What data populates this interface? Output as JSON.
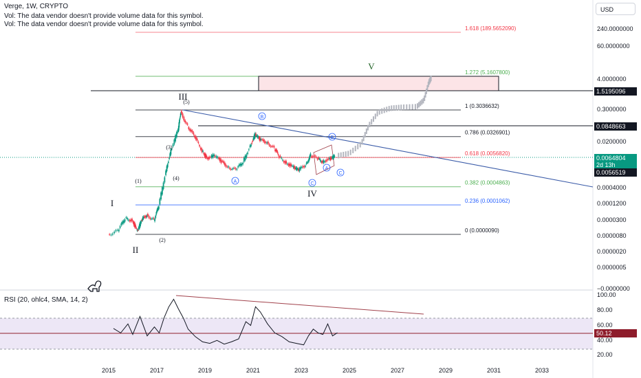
{
  "header": {
    "title": "Verge, 1W, CRYPTO",
    "vol_notice_1": "Vol: The data vendor doesn't provide volume data for this symbol.",
    "vol_notice_2": "Vol: The data vendor doesn't provide volume data for this symbol."
  },
  "currency": "USD",
  "rsi_title": "RSI (20, ohlc4, SMA, 14, 2)",
  "colors": {
    "up": "#089981",
    "down": "#f23645",
    "projection": "#b2b5be",
    "trendline": "#3a5ba8",
    "rsi_line": "#131722",
    "rsi_div": "#a0404a",
    "rsi_band": "#ede7f6",
    "current_price": "#089981"
  },
  "chart_data": [
    {
      "type": "line",
      "title": "Verge, 1W, CRYPTO",
      "scale": "log",
      "x": [
        2015.0,
        2015.4,
        2015.7,
        2016.0,
        2016.2,
        2016.4,
        2016.6,
        2016.9,
        2017.1,
        2017.4,
        2017.6,
        2017.9,
        2018.0,
        2018.3,
        2018.6,
        2018.9,
        2019.1,
        2019.4,
        2019.7,
        2020.0,
        2020.3,
        2020.6,
        2020.9,
        2021.1,
        2021.3,
        2021.6,
        2021.9,
        2022.1,
        2022.4,
        2022.7,
        2022.9,
        2023.2,
        2023.4,
        2023.7,
        2023.9,
        2024.2,
        2024.4
      ],
      "values": [
        8.9e-06,
        1.2e-05,
        3.5e-05,
        2.8e-05,
        1.2e-05,
        3.2e-05,
        4.5e-05,
        3e-05,
        0.0001,
        0.002,
        0.01,
        0.06,
        0.25,
        0.08,
        0.03,
        0.01,
        0.005,
        0.007,
        0.004,
        0.0025,
        0.002,
        0.004,
        0.015,
        0.04,
        0.025,
        0.02,
        0.012,
        0.006,
        0.0035,
        0.0025,
        0.002,
        0.003,
        0.007,
        0.005,
        0.004,
        0.005,
        0.0064804
      ],
      "projection": {
        "x": [
          2024.5,
          2025.0,
          2025.5,
          2025.8,
          2026.2,
          2026.7,
          2027.2,
          2027.8,
          2028.1,
          2028.3,
          2028.4
        ],
        "values": [
          0.0065,
          0.008,
          0.018,
          0.08,
          0.25,
          0.35,
          0.38,
          0.4,
          0.7,
          3.0,
          4.5
        ]
      },
      "y_ticks": [
        "240.0000000",
        "60.0000000",
        "4.0000000",
        "0.3000000",
        "0.0200000",
        "0.0004000",
        "0.0001200",
        "0.0000300",
        "0.0000080",
        "0.0000020",
        "0.0000005",
        "−0.0000000"
      ],
      "x_ticks": [
        "2015",
        "2017",
        "2019",
        "2021",
        "2023",
        "2025",
        "2027",
        "2029",
        "2031",
        "2033"
      ],
      "fib_levels": [
        {
          "label": "1.618 (189.5652090)",
          "color": "#f23645"
        },
        {
          "label": "1.272 (5.1607800)",
          "color": "#4caf50"
        },
        {
          "label": "1 (0.3036632)",
          "color": "#131722"
        },
        {
          "label": "0.786 (0.0326901)",
          "color": "#131722"
        },
        {
          "label": "0.618 (0.0056820)",
          "color": "#f23645"
        },
        {
          "label": "0.382 (0.0004863)",
          "color": "#4caf50"
        },
        {
          "label": "0.236 (0.0001062)",
          "color": "#2962ff"
        },
        {
          "label": "0 (0.0000090)",
          "color": "#131722"
        }
      ],
      "price_tags": [
        {
          "label": "1.5195096",
          "kind": "dark"
        },
        {
          "label": "0.0848663",
          "kind": "dark"
        },
        {
          "label": "0.0064804",
          "kind": "current"
        },
        {
          "label": "2d 13h",
          "kind": "current"
        },
        {
          "label": "0.0056519",
          "kind": "dark"
        }
      ],
      "wave_labels": [
        "I",
        "II",
        "III",
        "IV",
        "V",
        "(1)",
        "(2)",
        "(3)",
        "(4)",
        "(5)",
        "A",
        "B",
        "C",
        "A",
        "B",
        "C"
      ]
    },
    {
      "type": "line",
      "title": "RSI (20, ohlc4, SMA, 14, 2)",
      "ylim": [
        20,
        100
      ],
      "x": [
        2015.2,
        2015.5,
        2015.8,
        2016.0,
        2016.3,
        2016.6,
        2016.9,
        2017.1,
        2017.3,
        2017.5,
        2017.7,
        2017.9,
        2018.1,
        2018.3,
        2018.6,
        2018.9,
        2019.2,
        2019.5,
        2019.8,
        2020.1,
        2020.4,
        2020.7,
        2020.9,
        2021.1,
        2021.3,
        2021.6,
        2021.9,
        2022.2,
        2022.5,
        2022.8,
        2023.1,
        2023.3,
        2023.5,
        2023.7,
        2023.9,
        2024.1,
        2024.3,
        2024.5
      ],
      "values": [
        56,
        50,
        62,
        48,
        72,
        46,
        58,
        50,
        70,
        85,
        95,
        82,
        70,
        55,
        45,
        38,
        36,
        40,
        35,
        38,
        42,
        65,
        60,
        85,
        78,
        62,
        50,
        45,
        38,
        36,
        34,
        46,
        55,
        50,
        48,
        62,
        46,
        50.12
      ],
      "y_ticks": [
        "100.00",
        "80.00",
        "60.00",
        "40.00",
        "20.00"
      ],
      "current_value": "50.12"
    }
  ]
}
